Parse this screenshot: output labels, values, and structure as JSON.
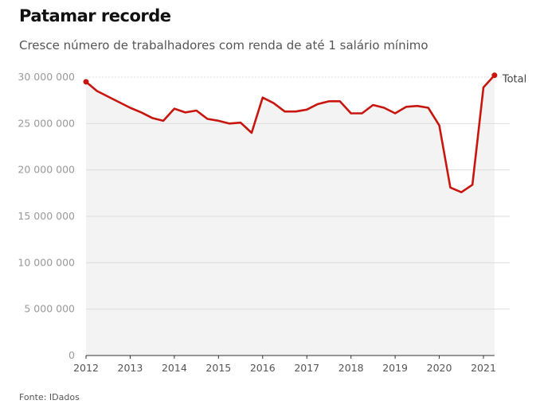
{
  "chart_data": {
    "type": "area",
    "title": "Patamar recorde",
    "subtitle": "Cresce número de trabalhadores com renda de até 1 salário mínimo",
    "source": "Fonte: IDados",
    "xlabel": "",
    "ylabel": "",
    "ylim": [
      0,
      30000000
    ],
    "yticks": [
      0,
      5000000,
      10000000,
      15000000,
      20000000,
      25000000,
      30000000
    ],
    "ytick_labels": [
      "0",
      "5 000 000",
      "10 000 000",
      "15 000 000",
      "20 000 000",
      "25 000 000",
      "30 000 000"
    ],
    "xlim": [
      2012,
      2021.25
    ],
    "xticks": [
      2012,
      2013,
      2014,
      2015,
      2016,
      2017,
      2018,
      2019,
      2020,
      2021
    ],
    "xtick_labels": [
      "2012",
      "2013",
      "2014",
      "2015",
      "2016",
      "2017",
      "2018",
      "2019",
      "2020",
      "2021"
    ],
    "grid": true,
    "series": [
      {
        "name": "Total",
        "color": "#c8150e",
        "x_start": 2012,
        "x_step": 0.25,
        "values": [
          29.5,
          28.5,
          27.9,
          27.3,
          26.7,
          26.2,
          25.6,
          25.3,
          26.6,
          26.2,
          26.4,
          25.5,
          25.3,
          25.0,
          25.1,
          24.0,
          27.8,
          27.2,
          26.3,
          26.3,
          26.5,
          27.1,
          27.4,
          27.4,
          26.1,
          26.1,
          27.0,
          26.7,
          26.1,
          26.8,
          26.9,
          26.7,
          24.8,
          18.1,
          17.6,
          18.4,
          28.9,
          30.2
        ],
        "values_unit": "millions"
      }
    ]
  }
}
